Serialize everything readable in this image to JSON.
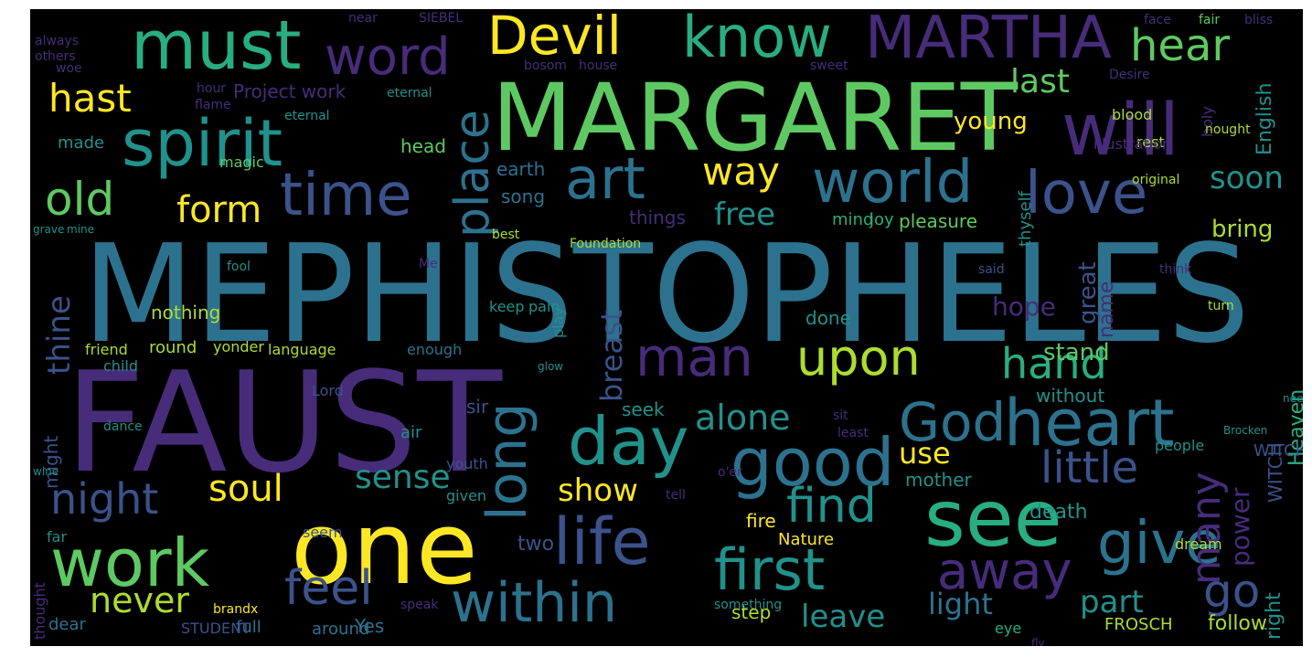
{
  "palette": {
    "p1": "#472c7a",
    "p2": "#3b528b",
    "p3": "#2c728e",
    "p4": "#21918c",
    "p5": "#28ae80",
    "p6": "#5ec962",
    "p7": "#addc30",
    "p8": "#fde725"
  },
  "words": [
    {
      "text": "MEPHISTOPHELES",
      "color": "p3"
    },
    {
      "text": "FAUST",
      "color": "p1"
    },
    {
      "text": "MARGARET",
      "color": "p6"
    },
    {
      "text": "one",
      "color": "p8"
    },
    {
      "text": "will",
      "color": "p1"
    },
    {
      "text": "see",
      "color": "p5"
    },
    {
      "text": "must",
      "color": "p5"
    },
    {
      "text": "spirit",
      "color": "p4"
    },
    {
      "text": "MARTHA",
      "color": "p1"
    },
    {
      "text": "Devil",
      "color": "p8"
    },
    {
      "text": "know",
      "color": "p5"
    },
    {
      "text": "word",
      "color": "p1"
    },
    {
      "text": "hear",
      "color": "p6"
    },
    {
      "text": "time",
      "color": "p2"
    },
    {
      "text": "world",
      "color": "p3"
    },
    {
      "text": "love",
      "color": "p2"
    },
    {
      "text": "old",
      "color": "p6"
    },
    {
      "text": "art",
      "color": "p3"
    },
    {
      "text": "heart",
      "color": "p3"
    },
    {
      "text": "God",
      "color": "p3"
    },
    {
      "text": "good",
      "color": "p3"
    },
    {
      "text": "day",
      "color": "p4"
    },
    {
      "text": "work",
      "color": "p6"
    },
    {
      "text": "life",
      "color": "p2"
    },
    {
      "text": "give",
      "color": "p3"
    },
    {
      "text": "first",
      "color": "p4"
    },
    {
      "text": "within",
      "color": "p3"
    },
    {
      "text": "away",
      "color": "p1"
    },
    {
      "text": "upon",
      "color": "p7"
    },
    {
      "text": "man",
      "color": "p1"
    },
    {
      "text": "long",
      "color": "p3"
    },
    {
      "text": "place",
      "color": "p3"
    },
    {
      "text": "hast",
      "color": "p8"
    },
    {
      "text": "last",
      "color": "p6"
    },
    {
      "text": "soon",
      "color": "p4"
    },
    {
      "text": "way",
      "color": "p8"
    },
    {
      "text": "form",
      "color": "p8"
    },
    {
      "text": "free",
      "color": "p4"
    },
    {
      "text": "bring",
      "color": "p7"
    },
    {
      "text": "night",
      "color": "p2"
    },
    {
      "text": "soul",
      "color": "p8"
    },
    {
      "text": "sense",
      "color": "p4"
    },
    {
      "text": "alone",
      "color": "p4"
    },
    {
      "text": "hand",
      "color": "p5"
    },
    {
      "text": "little",
      "color": "p2"
    },
    {
      "text": "find",
      "color": "p4"
    },
    {
      "text": "show",
      "color": "p8"
    },
    {
      "text": "use",
      "color": "p8"
    },
    {
      "text": "many",
      "color": "p1"
    },
    {
      "text": "power",
      "color": "p1"
    },
    {
      "text": "feel",
      "color": "p2"
    },
    {
      "text": "never",
      "color": "p7"
    },
    {
      "text": "go",
      "color": "p2"
    },
    {
      "text": "leave",
      "color": "p4"
    },
    {
      "text": "light",
      "color": "p3"
    },
    {
      "text": "part",
      "color": "p4"
    },
    {
      "text": "thine",
      "color": "p2"
    },
    {
      "text": "breast",
      "color": "p2"
    },
    {
      "text": "stand",
      "color": "p6"
    },
    {
      "text": "young",
      "color": "p8"
    },
    {
      "text": "English",
      "color": "p4"
    },
    {
      "text": "hope",
      "color": "p1"
    },
    {
      "text": "Project work",
      "color": "p1"
    },
    {
      "text": "head",
      "color": "p6"
    },
    {
      "text": "earth",
      "color": "p3"
    },
    {
      "text": "song",
      "color": "p3"
    },
    {
      "text": "things",
      "color": "p1"
    },
    {
      "text": "pleasure",
      "color": "p6"
    },
    {
      "text": "mind",
      "color": "p5"
    },
    {
      "text": "joy",
      "color": "p5"
    },
    {
      "text": "thyself",
      "color": "p4"
    },
    {
      "text": "two",
      "color": "p2"
    },
    {
      "text": "mother",
      "color": "p4"
    },
    {
      "text": "death",
      "color": "p4"
    },
    {
      "text": "without",
      "color": "p4"
    },
    {
      "text": "seek",
      "color": "p4"
    },
    {
      "text": "sir",
      "color": "p2"
    },
    {
      "text": "fire",
      "color": "p8"
    },
    {
      "text": "Nature",
      "color": "p8"
    },
    {
      "text": "FROSCH",
      "color": "p7"
    },
    {
      "text": "follow",
      "color": "p7"
    },
    {
      "text": "great",
      "color": "p2"
    },
    {
      "text": "made",
      "color": "p4"
    },
    {
      "text": "magic",
      "color": "p6"
    },
    {
      "text": "might",
      "color": "p2"
    },
    {
      "text": "friend",
      "color": "p7"
    },
    {
      "text": "round",
      "color": "p7"
    },
    {
      "text": "yonder",
      "color": "p7"
    },
    {
      "text": "language",
      "color": "p7"
    },
    {
      "text": "enough",
      "color": "p3"
    },
    {
      "text": "dear",
      "color": "p3"
    },
    {
      "text": "around",
      "color": "p3"
    },
    {
      "text": "Yes",
      "color": "p3"
    },
    {
      "text": "full",
      "color": "p3"
    },
    {
      "text": "STUDENT",
      "color": "p2"
    },
    {
      "text": "eye",
      "color": "p5"
    },
    {
      "text": "Heaven",
      "color": "p5"
    },
    {
      "text": "WITCH",
      "color": "p2"
    },
    {
      "text": "right",
      "color": "p4"
    },
    {
      "text": "people",
      "color": "p4"
    },
    {
      "text": "air",
      "color": "p4"
    },
    {
      "text": "Lord",
      "color": "p2"
    },
    {
      "text": "given",
      "color": "p4"
    },
    {
      "text": "youth",
      "color": "p2"
    },
    {
      "text": "play",
      "color": "p4"
    },
    {
      "text": "done",
      "color": "p4"
    },
    {
      "text": "keep",
      "color": "p4"
    },
    {
      "text": "pain",
      "color": "p4"
    },
    {
      "text": "nothing",
      "color": "p7"
    },
    {
      "text": "child",
      "color": "p4"
    },
    {
      "text": "seem",
      "color": "p2"
    },
    {
      "text": "far",
      "color": "p4"
    },
    {
      "text": "step",
      "color": "p7"
    },
    {
      "text": "dream",
      "color": "p7"
    },
    {
      "text": "blood",
      "color": "p7"
    },
    {
      "text": "rest",
      "color": "p7"
    },
    {
      "text": "illustration",
      "color": "p1"
    },
    {
      "text": "house",
      "color": "p1"
    },
    {
      "text": "bosom",
      "color": "p1"
    },
    {
      "text": "sweet",
      "color": "p1"
    },
    {
      "text": "bliss",
      "color": "p1"
    },
    {
      "text": "face",
      "color": "p1"
    },
    {
      "text": "fair",
      "color": "p6"
    },
    {
      "text": "SIEBEL",
      "color": "p1"
    },
    {
      "text": "near",
      "color": "p1"
    },
    {
      "text": "always",
      "color": "p1"
    },
    {
      "text": "others",
      "color": "p1"
    },
    {
      "text": "woe",
      "color": "p1"
    },
    {
      "text": "hour",
      "color": "p1"
    },
    {
      "text": "holy",
      "color": "p1"
    },
    {
      "text": "name",
      "color": "p1"
    },
    {
      "text": "flame",
      "color": "p1"
    },
    {
      "text": "thought",
      "color": "p1"
    },
    {
      "text": "eternal",
      "color": "p4"
    },
    {
      "text": "Desire",
      "color": "p1"
    },
    {
      "text": "turn",
      "color": "p7"
    },
    {
      "text": "said",
      "color": "p2"
    },
    {
      "text": "book",
      "color": "p1"
    },
    {
      "text": "dance",
      "color": "p4"
    },
    {
      "text": "something",
      "color": "p4"
    },
    {
      "text": "speak",
      "color": "p1"
    },
    {
      "text": "tell",
      "color": "p1"
    },
    {
      "text": "o'er",
      "color": "p1"
    },
    {
      "text": "think",
      "color": "p1"
    },
    {
      "text": "sit",
      "color": "p1"
    },
    {
      "text": "least",
      "color": "p1"
    },
    {
      "text": "best",
      "color": "p7"
    },
    {
      "text": "Me",
      "color": "p1"
    },
    {
      "text": "fool",
      "color": "p4"
    },
    {
      "text": "original",
      "color": "p7"
    },
    {
      "text": "Foundation",
      "color": "p7"
    },
    {
      "text": "nought",
      "color": "p7"
    },
    {
      "text": "brandx",
      "color": "p8"
    },
    {
      "text": "fly",
      "color": "p1"
    },
    {
      "text": "glow",
      "color": "p4"
    },
    {
      "text": "grave",
      "color": "p4"
    },
    {
      "text": "Brocken",
      "color": "p4"
    },
    {
      "text": "need",
      "color": "p4"
    },
    {
      "text": "wine",
      "color": "p4"
    },
    {
      "text": "mine",
      "color": "p4"
    }
  ]
}
